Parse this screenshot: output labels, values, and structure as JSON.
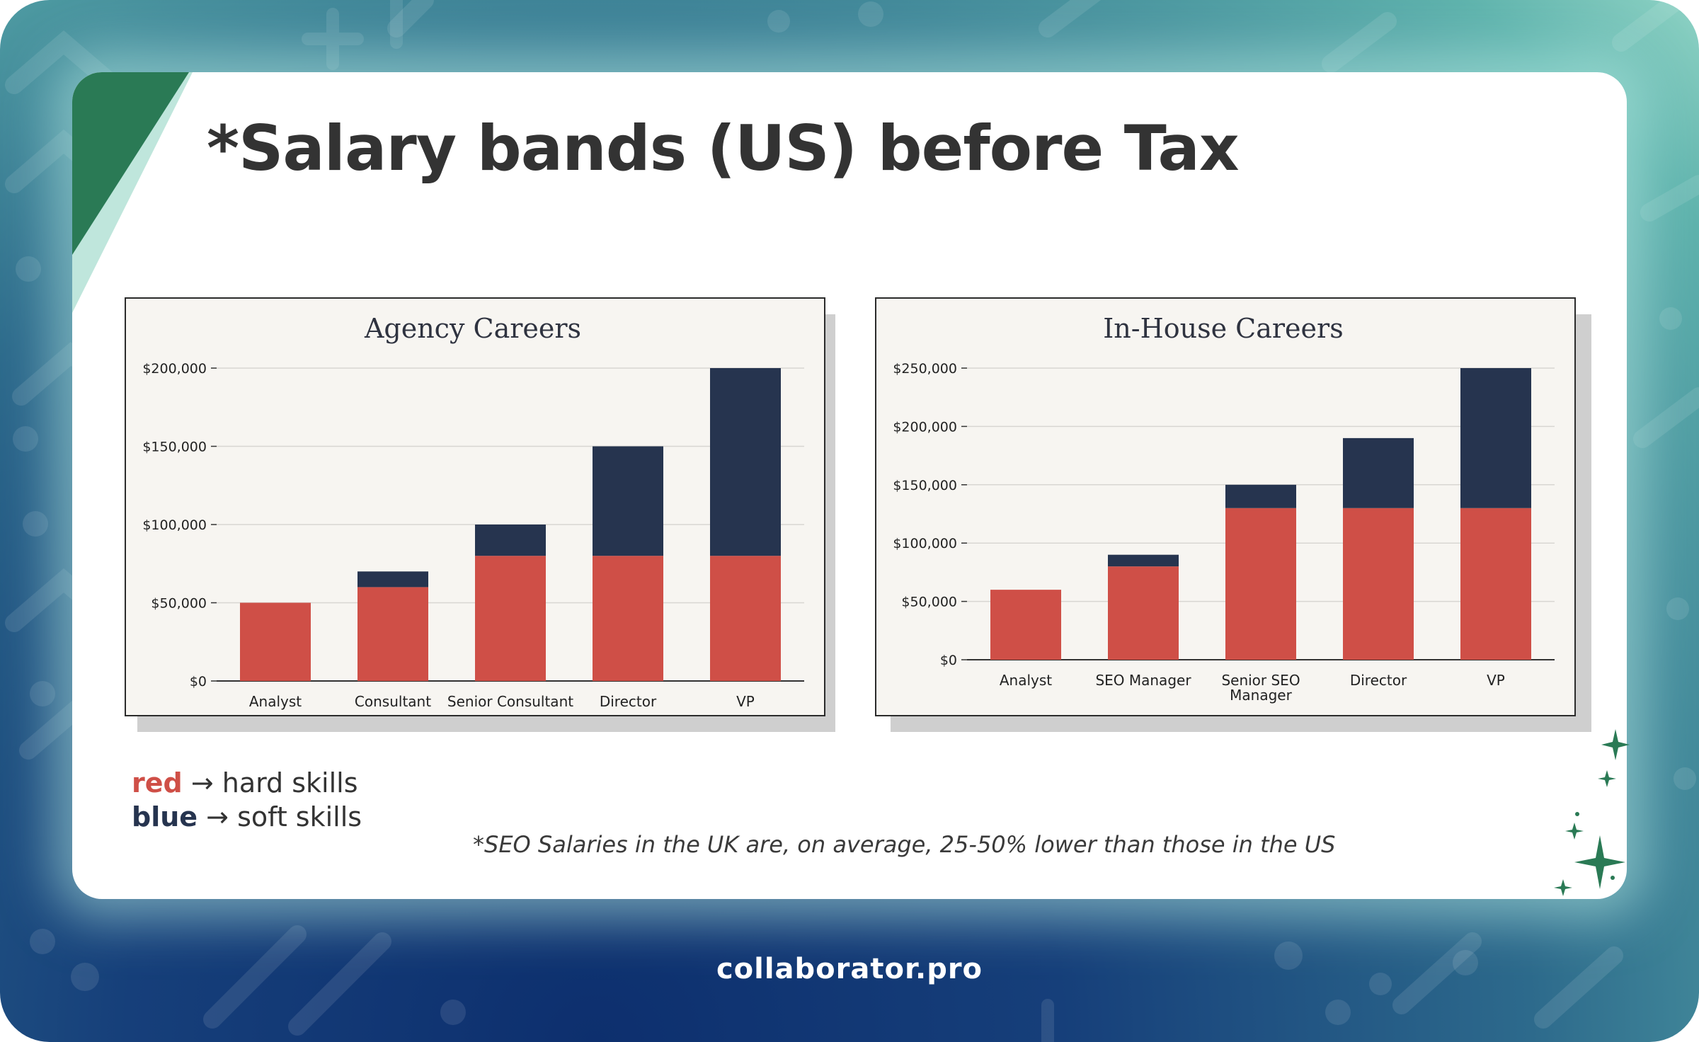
{
  "title": "*Salary bands (US) before Tax",
  "colors": {
    "hard": "#cf4f47",
    "soft": "#26344f",
    "accent": "#2a7a55"
  },
  "chart_data": [
    {
      "type": "bar",
      "stacked": true,
      "title": "Agency Careers",
      "categories": [
        [
          "Analyst"
        ],
        [
          "Consultant"
        ],
        [
          "Senior Consultant"
        ],
        [
          "Director"
        ],
        [
          "VP"
        ]
      ],
      "series": [
        {
          "name": "hard skills",
          "color": "#cf4f47",
          "values": [
            50000,
            60000,
            80000,
            80000,
            80000
          ]
        },
        {
          "name": "soft skills",
          "color": "#26344f",
          "values": [
            0,
            10000,
            20000,
            70000,
            120000
          ]
        }
      ],
      "ylim": [
        0,
        200000
      ],
      "yticks": [
        0,
        50000,
        100000,
        150000,
        200000
      ],
      "yticklabels": [
        "$0",
        "$50,000",
        "$100,000",
        "$150,000",
        "$200,000"
      ],
      "grid": true
    },
    {
      "type": "bar",
      "stacked": true,
      "title": "In-House Careers",
      "categories": [
        [
          "Analyst"
        ],
        [
          "SEO Manager"
        ],
        [
          "Senior SEO",
          "Manager"
        ],
        [
          "Director"
        ],
        [
          "VP"
        ]
      ],
      "series": [
        {
          "name": "hard skills",
          "color": "#cf4f47",
          "values": [
            60000,
            80000,
            130000,
            130000,
            130000
          ]
        },
        {
          "name": "soft skills",
          "color": "#26344f",
          "values": [
            0,
            10000,
            20000,
            60000,
            120000
          ]
        }
      ],
      "ylim": [
        0,
        250000
      ],
      "yticks": [
        0,
        50000,
        100000,
        150000,
        200000,
        250000
      ],
      "yticklabels": [
        "$0",
        "$50,000",
        "$100,000",
        "$150,000",
        "$200,000",
        "$250,000"
      ],
      "grid": true
    }
  ],
  "legend": {
    "red_word": "red",
    "red_text": "→ hard skills",
    "blue_word": "blue",
    "blue_text": "→ soft skills"
  },
  "footnote": "*SEO Salaries in the UK are, on average, 25-50% lower than those in the US",
  "brand": "collaborator.pro"
}
